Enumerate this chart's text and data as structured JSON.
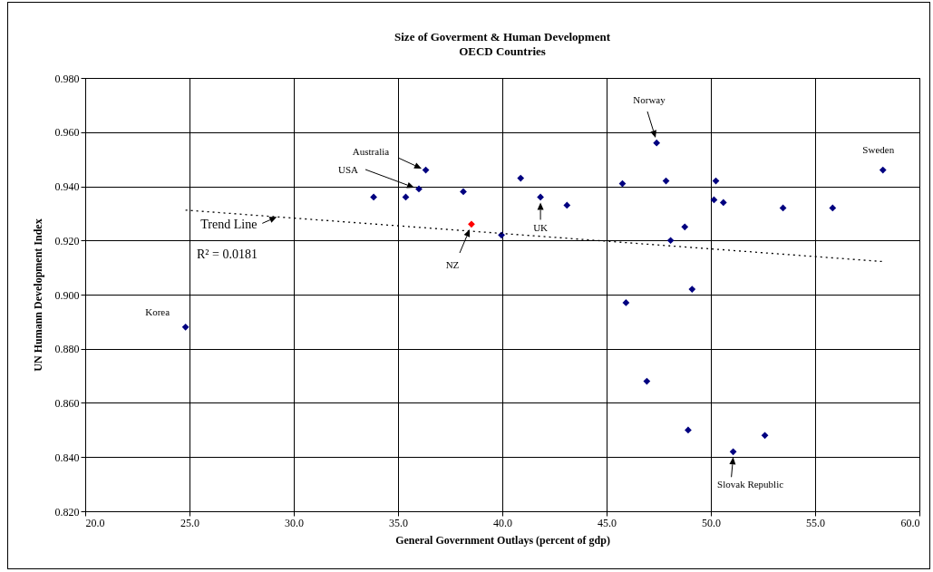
{
  "chart_data": {
    "type": "scatter",
    "title": "Size  of Goverment & Human Development",
    "subtitle": "OECD Countries",
    "xlabel": "General Government Outlays (percent of gdp)",
    "ylabel": "UN Humann Development Index",
    "xlim": [
      20,
      60
    ],
    "ylim": [
      0.82,
      0.98
    ],
    "xticks": [
      {
        "value": 20,
        "label": "20.0"
      },
      {
        "value": 25,
        "label": "25.0"
      },
      {
        "value": 30,
        "label": "30.0"
      },
      {
        "value": 35,
        "label": "35.0"
      },
      {
        "value": 40,
        "label": "40.0"
      },
      {
        "value": 45,
        "label": "45.0"
      },
      {
        "value": 50,
        "label": "50.0"
      },
      {
        "value": 55,
        "label": "55.0"
      },
      {
        "value": 60,
        "label": "60.0"
      }
    ],
    "yticks": [
      {
        "value": 0.82,
        "label": "0.820"
      },
      {
        "value": 0.84,
        "label": "0.840"
      },
      {
        "value": 0.86,
        "label": "0.860"
      },
      {
        "value": 0.88,
        "label": "0.880"
      },
      {
        "value": 0.9,
        "label": "0.900"
      },
      {
        "value": 0.92,
        "label": "0.920"
      },
      {
        "value": 0.94,
        "label": "0.940"
      },
      {
        "value": 0.96,
        "label": "0.960"
      },
      {
        "value": 0.98,
        "label": "0.980"
      }
    ],
    "grid": true,
    "series": [
      {
        "marker": "diamond",
        "x": [
          24.81,
          33.83,
          35.37,
          36.0,
          36.33,
          38.13,
          38.52,
          39.96,
          40.88,
          41.83,
          43.1,
          45.76,
          47.4,
          47.85,
          48.75,
          48.07,
          49.1,
          50.24,
          50.15,
          50.6,
          53.46,
          55.84,
          58.25,
          45.93,
          46.93,
          48.91,
          51.07,
          52.59
        ],
        "values": [
          0.888,
          0.936,
          0.936,
          0.939,
          0.946,
          0.938,
          0.926,
          0.922,
          0.943,
          0.936,
          0.933,
          0.941,
          0.956,
          0.942,
          0.925,
          0.92,
          0.902,
          0.942,
          0.935,
          0.934,
          0.932,
          0.932,
          0.946,
          0.897,
          0.868,
          0.85,
          0.842,
          0.848
        ],
        "colors": [
          "#000080",
          "#000080",
          "#000080",
          "#000080",
          "#000080",
          "#000080",
          "#ff0000",
          "#000080",
          "#000080",
          "#000080",
          "#000080",
          "#000080",
          "#000080",
          "#000080",
          "#000080",
          "#000080",
          "#000080",
          "#000080",
          "#000080",
          "#000080",
          "#000080",
          "#000080",
          "#000080",
          "#000080",
          "#000080",
          "#000080",
          "#000080",
          "#000080"
        ]
      },
      {
        "type": "line",
        "x": [
          24.81,
          58.25
        ],
        "values": [
          0.9312,
          0.9122
        ],
        "color": "#000000",
        "line_style": "dotted"
      }
    ],
    "annotations": [
      "Australia",
      "USA",
      "NZ",
      {
        "text": "UK",
        "x": 41.83,
        "y": 0.936
      },
      "Norway",
      {
        "text": "Sweden",
        "x": 58.25,
        "y": 0.946
      },
      {
        "text": "Korea",
        "x": 24.81,
        "y": 0.888
      },
      {
        "text": "Slovak Republic",
        "x": 51.07,
        "y": 0.842
      },
      {
        "text": "Trend Line",
        "x": 29.1,
        "y": 0.929
      },
      "R² = 0.0181"
    ]
  }
}
